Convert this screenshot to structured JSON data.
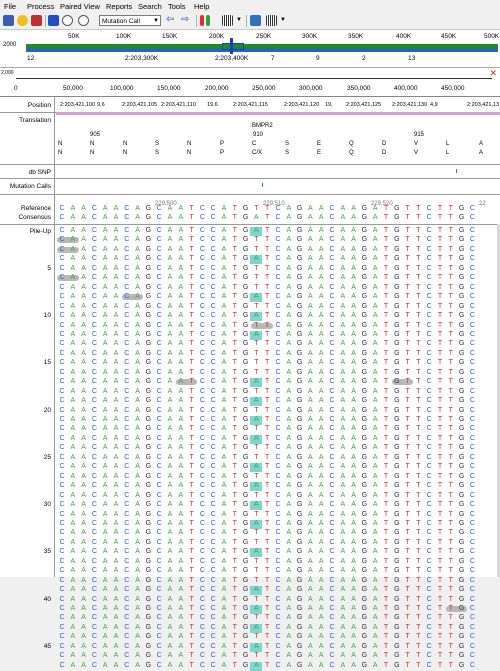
{
  "menu": [
    "File",
    "Process",
    "Paired View",
    "Reports",
    "Search",
    "Tools",
    "Help"
  ],
  "toolbar": {
    "mode_select": "Mutation Call"
  },
  "chromosome": {
    "left_label": "2000",
    "ticks": [
      "50K",
      "100K",
      "150K",
      "200K",
      "250K",
      "300K",
      "350K",
      "400K",
      "450K",
      "500K"
    ],
    "region_labels": [
      "12",
      "2:203,300K",
      "2:203,400K",
      "7",
      "9",
      "2",
      "13"
    ]
  },
  "coverage": {
    "axis_label": "2,000",
    "ticks": [
      "0",
      "50,000",
      "100,000",
      "150,000",
      "200,000",
      "250,000",
      "300,000",
      "350,000",
      "400,000",
      "450,000"
    ]
  },
  "tracks": {
    "position_label": "Position",
    "positions": [
      "2:203,421,100",
      "9,6",
      "2:203,421,105",
      "2:203,421,110",
      "19,6",
      "2:203,421,115",
      "2:203,421,120",
      "19,",
      "2:203,421,125",
      "2:203,421,130",
      "4,9",
      "2:203,421,13"
    ],
    "translation_label": "Translation",
    "gene": "BMPR2",
    "codon_numbers": [
      "905",
      "910",
      "915"
    ],
    "aa_row1": [
      "N",
      "N",
      "N",
      "S",
      "N",
      "P",
      "C",
      "S",
      "E",
      "Q",
      "D",
      "V",
      "L",
      "A"
    ],
    "aa_row2": [
      "N",
      "N",
      "N",
      "S",
      "N",
      "P",
      "C/X",
      "S",
      "E",
      "Q",
      "D",
      "V",
      "L",
      "A"
    ],
    "dbsnp_label": "db SNP",
    "mutation_label": "Mutation Calls",
    "reference_label": "Reference",
    "consensus_label": "Consensus",
    "ref_ticks": [
      "229,500",
      "229,510",
      "229,520",
      "22"
    ],
    "reference_seq": "CAACAACAGCAATCCATGTTCAGAACAAGATGTTCTTGC",
    "consensus_seq": "CAACAACAGCAATCCATGATCAGAACAAGATGTTCTTGC",
    "pileup_label": "Pile-Up",
    "row_numbers": [
      "5",
      "10",
      "15",
      "20",
      "25",
      "30",
      "35",
      "40",
      "45"
    ]
  },
  "colors": {
    "A": "#39a845",
    "C": "#2d5fd6",
    "G": "#333333",
    "T": "#d42a2a",
    "highlight": "#7fd6d0"
  }
}
